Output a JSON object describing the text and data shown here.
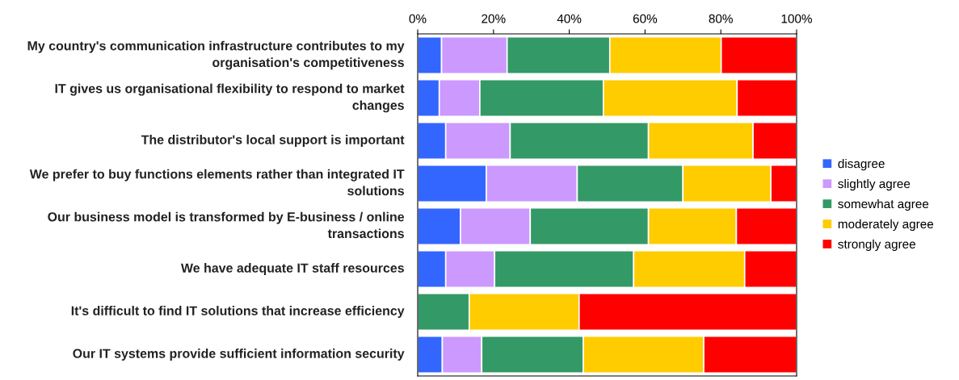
{
  "chart_data": {
    "type": "bar",
    "orientation": "horizontal",
    "stacked": true,
    "categories": [
      "My country's communication infrastructure contributes to my organisation's competitiveness",
      "IT gives us organisational flexibility to respond to market changes",
      "The distributor's local support is important",
      "We prefer to buy functions elements rather than integrated IT solutions",
      "Our business model is transformed by E-business / online transactions",
      "We have adequate IT staff resources",
      "It's difficult to find IT solutions that increase efficiency",
      "Our IT systems provide sufficient information security"
    ],
    "series": [
      {
        "name": "disagree",
        "color": "#3366ff",
        "values": [
          6.3,
          5.7,
          7.4,
          18.1,
          11.3,
          7.4,
          0,
          6.5
        ]
      },
      {
        "name": "slightly agree",
        "color": "#cc99ff",
        "values": [
          17.3,
          10.7,
          17.0,
          24.0,
          18.4,
          12.9,
          0,
          10.4
        ]
      },
      {
        "name": "somewhat agree",
        "color": "#339966",
        "values": [
          27.1,
          32.6,
          36.5,
          27.9,
          31.2,
          36.7,
          13.6,
          26.8
        ]
      },
      {
        "name": "moderately agree",
        "color": "#ffcc00",
        "values": [
          29.4,
          35.3,
          27.6,
          23.2,
          23.2,
          29.3,
          29.0,
          31.8
        ]
      },
      {
        "name": "strongly agree",
        "color": "#ff0000",
        "values": [
          19.9,
          15.7,
          11.5,
          6.8,
          15.9,
          13.7,
          57.4,
          24.5
        ]
      }
    ],
    "xlim": [
      0,
      100
    ],
    "xticks": [
      {
        "value": 0,
        "label": "0%"
      },
      {
        "value": 20,
        "label": "20%"
      },
      {
        "value": 40,
        "label": "40%"
      },
      {
        "value": 60,
        "label": "60%"
      },
      {
        "value": 80,
        "label": "80%"
      },
      {
        "value": 100,
        "label": "100%"
      }
    ],
    "grid": false,
    "legend": "right"
  }
}
